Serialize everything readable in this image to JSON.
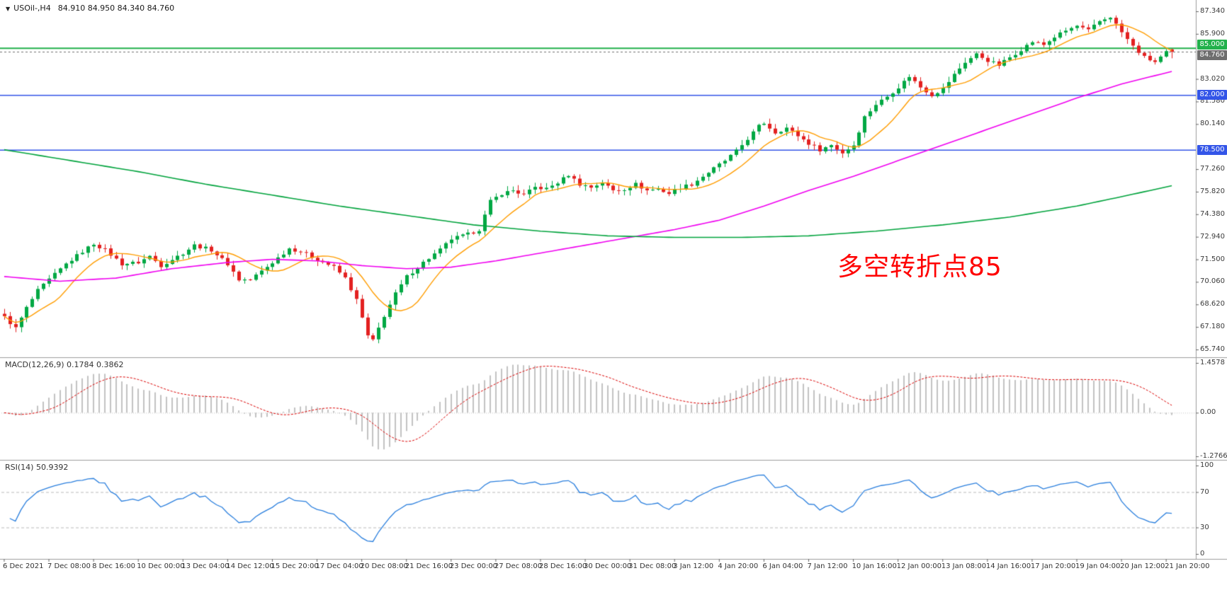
{
  "window": {
    "dropdown_icon": "▼",
    "symbol_label": "USOil-,H4",
    "ohlc": "84.910 84.950 84.340 84.760"
  },
  "annotation": {
    "text": "多空转折点85",
    "color": "#FF0000"
  },
  "colors": {
    "background": "#FFFFFF",
    "up_candle": "#00A843",
    "down_candle": "#E32020",
    "fast_ma": "#FF9D00",
    "mid_ma": "#F000F0",
    "slow_ma": "#00A33C",
    "separator": "#9E9E9E",
    "axis_text": "#3A3A3A"
  },
  "price_axis": {
    "max": 87.34,
    "min": 65.74,
    "ticks": [
      "87.340",
      "85.900",
      "83.020",
      "81.580",
      "80.140",
      "77.260",
      "75.820",
      "74.380",
      "72.940",
      "71.500",
      "70.060",
      "68.620",
      "67.180",
      "65.740"
    ]
  },
  "hlines": [
    {
      "label": "85.000",
      "value": 85.0,
      "color": "#22B14C",
      "style": "solid",
      "width": 2
    },
    {
      "label": "84.760",
      "value": 84.76,
      "color": "#6E6E6E",
      "style": "dashed",
      "width": 1
    },
    {
      "label": "82.000",
      "value": 82.0,
      "color": "#3355E8",
      "style": "solid",
      "width": 1.5
    },
    {
      "label": "78.500",
      "value": 78.5,
      "color": "#3355E8",
      "style": "solid",
      "width": 1.5
    }
  ],
  "time_axis": {
    "labels": [
      "6 Dec 2021",
      "7 Dec 08:00",
      "8 Dec 16:00",
      "10 Dec 00:00",
      "13 Dec 04:00",
      "14 Dec 12:00",
      "15 Dec 20:00",
      "17 Dec 04:00",
      "20 Dec 08:00",
      "21 Dec 16:00",
      "23 Dec 00:00",
      "27 Dec 08:00",
      "28 Dec 16:00",
      "30 Dec 00:00",
      "31 Dec 08:00",
      "3 Jan 12:00",
      "4 Jan 20:00",
      "6 Jan 04:00",
      "7 Jan 12:00",
      "10 Jan 16:00",
      "12 Jan 00:00",
      "13 Jan 08:00",
      "14 Jan 16:00",
      "17 Jan 20:00",
      "19 Jan 04:00",
      "20 Jan 12:00",
      "21 Jan 20:00"
    ]
  },
  "chart_data": {
    "type": "candlestick",
    "symbol": "USOil-",
    "timeframe": "H4",
    "bars": 210,
    "ylim": [
      65.74,
      87.34
    ],
    "current_bar": {
      "open": 84.91,
      "high": 84.95,
      "low": 84.34,
      "close": 84.76
    },
    "price_path": [
      [
        0,
        67.8
      ],
      [
        2,
        67.1
      ],
      [
        4,
        68.4
      ],
      [
        6,
        69.5
      ],
      [
        8,
        70.2
      ],
      [
        11,
        71.2
      ],
      [
        14,
        72.0
      ],
      [
        16,
        72.5
      ],
      [
        18,
        72.1
      ],
      [
        21,
        71.2
      ],
      [
        24,
        71.3
      ],
      [
        26,
        71.7
      ],
      [
        28,
        71.1
      ],
      [
        32,
        71.9
      ],
      [
        34,
        72.4
      ],
      [
        37,
        72.1
      ],
      [
        40,
        71.2
      ],
      [
        42,
        70.2
      ],
      [
        44,
        70.2
      ],
      [
        48,
        71.3
      ],
      [
        51,
        72.2
      ],
      [
        53,
        72.0
      ],
      [
        56,
        71.5
      ],
      [
        59,
        71.0
      ],
      [
        61,
        70.3
      ],
      [
        63,
        68.9
      ],
      [
        65,
        66.6
      ],
      [
        66,
        66.3
      ],
      [
        68,
        67.9
      ],
      [
        70,
        69.3
      ],
      [
        72,
        70.4
      ],
      [
        75,
        71.3
      ],
      [
        78,
        72.1
      ],
      [
        80,
        72.8
      ],
      [
        83,
        73.1
      ],
      [
        85,
        73.4
      ],
      [
        87,
        75.2
      ],
      [
        89,
        75.7
      ],
      [
        91,
        75.9
      ],
      [
        93,
        75.6
      ],
      [
        95,
        76.1
      ],
      [
        97,
        76.0
      ],
      [
        99,
        76.4
      ],
      [
        101,
        76.9
      ],
      [
        103,
        76.3
      ],
      [
        105,
        76.1
      ],
      [
        107,
        76.4
      ],
      [
        109,
        75.9
      ],
      [
        111,
        76.0
      ],
      [
        113,
        76.3
      ],
      [
        115,
        75.9
      ],
      [
        117,
        76.0
      ],
      [
        119,
        75.7
      ],
      [
        121,
        76.1
      ],
      [
        123,
        76.3
      ],
      [
        125,
        76.8
      ],
      [
        127,
        77.3
      ],
      [
        129,
        77.8
      ],
      [
        131,
        78.4
      ],
      [
        133,
        79.2
      ],
      [
        135,
        80.0
      ],
      [
        136,
        80.2
      ],
      [
        138,
        79.6
      ],
      [
        140,
        79.9
      ],
      [
        142,
        79.4
      ],
      [
        144,
        78.9
      ],
      [
        146,
        78.5
      ],
      [
        148,
        78.8
      ],
      [
        150,
        78.3
      ],
      [
        152,
        78.8
      ],
      [
        154,
        80.6
      ],
      [
        156,
        81.4
      ],
      [
        158,
        81.9
      ],
      [
        160,
        82.5
      ],
      [
        162,
        83.2
      ],
      [
        164,
        82.5
      ],
      [
        166,
        82.0
      ],
      [
        168,
        82.4
      ],
      [
        170,
        83.3
      ],
      [
        172,
        84.1
      ],
      [
        174,
        84.6
      ],
      [
        176,
        84.2
      ],
      [
        178,
        83.9
      ],
      [
        180,
        84.4
      ],
      [
        182,
        84.9
      ],
      [
        184,
        85.4
      ],
      [
        186,
        85.2
      ],
      [
        188,
        85.7
      ],
      [
        190,
        86.1
      ],
      [
        192,
        86.4
      ],
      [
        194,
        86.1
      ],
      [
        196,
        86.7
      ],
      [
        198,
        87.0
      ],
      [
        200,
        86.0
      ],
      [
        202,
        85.1
      ],
      [
        204,
        84.4
      ],
      [
        206,
        84.1
      ],
      [
        208,
        84.7
      ],
      [
        209,
        84.76
      ]
    ],
    "moving_averages": [
      {
        "name": "fast-ma",
        "color": "#FF9D00",
        "period": 10,
        "source": "computed-from-closes"
      },
      {
        "name": "mid-ma",
        "color": "#F000F0",
        "path": [
          [
            0,
            70.4
          ],
          [
            10,
            70.1
          ],
          [
            20,
            70.3
          ],
          [
            30,
            70.9
          ],
          [
            40,
            71.3
          ],
          [
            48,
            71.5
          ],
          [
            56,
            71.4
          ],
          [
            64,
            71.1
          ],
          [
            72,
            70.9
          ],
          [
            80,
            71.0
          ],
          [
            88,
            71.4
          ],
          [
            96,
            71.9
          ],
          [
            104,
            72.4
          ],
          [
            112,
            72.9
          ],
          [
            120,
            73.4
          ],
          [
            128,
            74.0
          ],
          [
            136,
            74.9
          ],
          [
            144,
            75.9
          ],
          [
            152,
            76.8
          ],
          [
            160,
            77.8
          ],
          [
            168,
            78.8
          ],
          [
            176,
            79.8
          ],
          [
            184,
            80.8
          ],
          [
            192,
            81.8
          ],
          [
            200,
            82.7
          ],
          [
            209,
            83.5
          ]
        ]
      },
      {
        "name": "slow-ma",
        "color": "#00A33C",
        "path": [
          [
            0,
            78.5
          ],
          [
            12,
            77.8
          ],
          [
            24,
            77.1
          ],
          [
            36,
            76.3
          ],
          [
            48,
            75.6
          ],
          [
            60,
            74.9
          ],
          [
            72,
            74.3
          ],
          [
            84,
            73.7
          ],
          [
            96,
            73.3
          ],
          [
            108,
            73.0
          ],
          [
            120,
            72.9
          ],
          [
            132,
            72.9
          ],
          [
            144,
            73.0
          ],
          [
            156,
            73.3
          ],
          [
            168,
            73.7
          ],
          [
            180,
            74.2
          ],
          [
            192,
            74.9
          ],
          [
            200,
            75.5
          ],
          [
            209,
            76.2
          ]
        ]
      }
    ],
    "indicators": [
      {
        "name": "MACD",
        "title": "MACD(12,26,9) 0.1784 0.3862",
        "params": [
          12,
          26,
          9
        ],
        "current": {
          "macd": 0.1784,
          "signal": 0.3862
        },
        "axis": {
          "max": 1.4578,
          "min": -1.2766,
          "ticks": [
            "1.4578",
            "0.00",
            "-1.2766"
          ]
        },
        "histogram_color": "#C2C2C2",
        "signal_color": "#DC0000"
      },
      {
        "name": "RSI",
        "title": "RSI(14) 50.9392",
        "period": 14,
        "current": 50.9392,
        "axis": {
          "max": 100,
          "min": 0,
          "ticks": [
            "100",
            "70",
            "30",
            "0"
          ],
          "levels": [
            70,
            30
          ]
        },
        "line_color": "#2A7FDE",
        "level_color": "#BBBBBB"
      }
    ]
  }
}
